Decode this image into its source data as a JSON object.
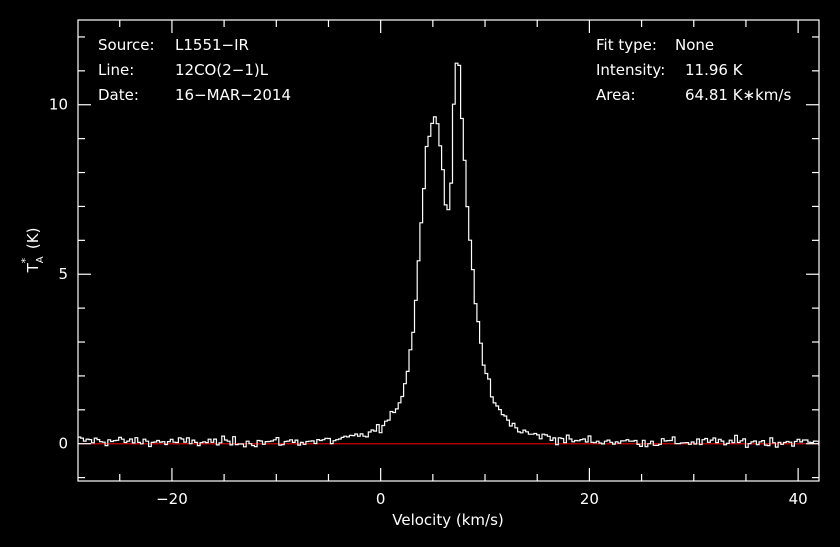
{
  "chart_data": {
    "type": "line",
    "style": "step",
    "background_color": "#000000",
    "foreground_color": "#ffffff",
    "baseline_color": "#cc0000",
    "xlabel": "Velocity (km/s)",
    "ylabel": "T*A (K)",
    "xlim": [
      -29,
      42
    ],
    "ylim": [
      -1.1,
      12.5
    ],
    "x_ticks": [
      {
        "value": -20,
        "label": "−20"
      },
      {
        "value": 0,
        "label": "0"
      },
      {
        "value": 20,
        "label": "20"
      },
      {
        "value": 40,
        "label": "40"
      }
    ],
    "y_ticks": [
      {
        "value": 0,
        "label": "0"
      },
      {
        "value": 5,
        "label": "5"
      },
      {
        "value": 10,
        "label": "10"
      }
    ],
    "grid": false,
    "baseline_value": 0,
    "info_left": [
      {
        "key": "Source:",
        "value": "L1551−IR"
      },
      {
        "key": "Line:",
        "value": "12CO(2−1)L"
      },
      {
        "key": "Date:",
        "value": "16−MAR−2014"
      }
    ],
    "info_right": [
      {
        "key": "Fit type:",
        "value": "None"
      },
      {
        "key": "Intensity:",
        "value": "11.96 K"
      },
      {
        "key": "Area:",
        "value": "64.81 K∗km/s"
      }
    ],
    "series": [
      {
        "color": "#ffffff",
        "noise_sigma": 0.12,
        "points": [
          [
            -29,
            0.1
          ],
          [
            -20,
            0.05
          ],
          [
            -10,
            0.05
          ],
          [
            -5,
            0.08
          ],
          [
            -2,
            0.2
          ],
          [
            0,
            0.45
          ],
          [
            1,
            0.75
          ],
          [
            2,
            1.4
          ],
          [
            2.5,
            2.0
          ],
          [
            3,
            3.0
          ],
          [
            3.5,
            4.8
          ],
          [
            4,
            7.0
          ],
          [
            4.5,
            9.0
          ],
          [
            5,
            9.7
          ],
          [
            5.5,
            9.5
          ],
          [
            6,
            8.0
          ],
          [
            6.3,
            6.7
          ],
          [
            6.7,
            7.2
          ],
          [
            7,
            10.0
          ],
          [
            7.4,
            11.96
          ],
          [
            7.8,
            9.5
          ],
          [
            8.3,
            7.0
          ],
          [
            9,
            4.5
          ],
          [
            9.5,
            3.3
          ],
          [
            10,
            2.1
          ],
          [
            11,
            1.1
          ],
          [
            12,
            0.75
          ],
          [
            13,
            0.45
          ],
          [
            14,
            0.3
          ],
          [
            16,
            0.2
          ],
          [
            18,
            0.1
          ],
          [
            25,
            0.05
          ],
          [
            42,
            0.05
          ]
        ]
      }
    ]
  }
}
